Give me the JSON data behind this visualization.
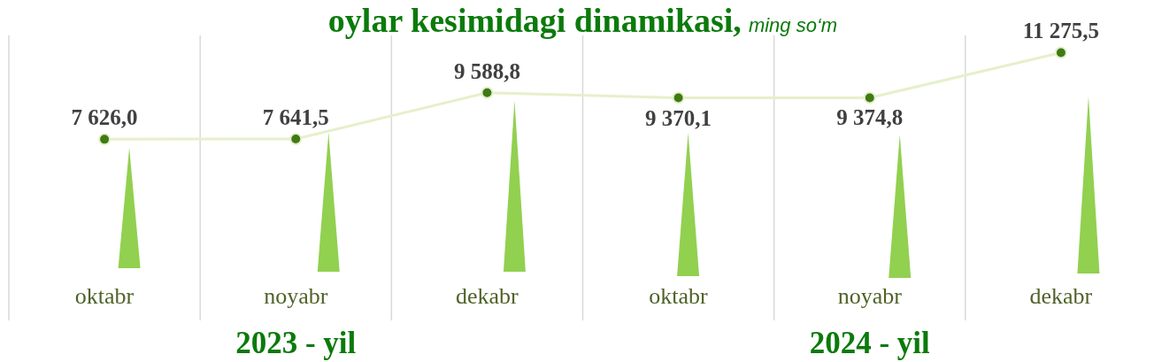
{
  "chart_data": {
    "type": "line",
    "title": "oylar kesimidagi dinamikasi,",
    "subtitle": "ming so‘m",
    "categories": [
      "oktabr",
      "noyabr",
      "dekabr",
      "oktabr",
      "noyabr",
      "dekabr"
    ],
    "values": [
      7626.0,
      7641.5,
      9588.8,
      9370.1,
      9374.8,
      11275.5
    ],
    "value_labels": [
      "7 626,0",
      "7 641,5",
      "9 588,8",
      "9 370,1",
      "9 374,8",
      "11 275,5"
    ],
    "color": "#e6f0cc",
    "colors": [
      "#3f7a15",
      "#3f7a15",
      "#3f7a15",
      "#3f7a15",
      "#3f7a15",
      "#3f7a15"
    ],
    "marker": "circle",
    "grid": "x",
    "tick_labels": "x",
    "annotations": [
      "2023 - yil",
      "2024 - yil"
    ]
  }
}
